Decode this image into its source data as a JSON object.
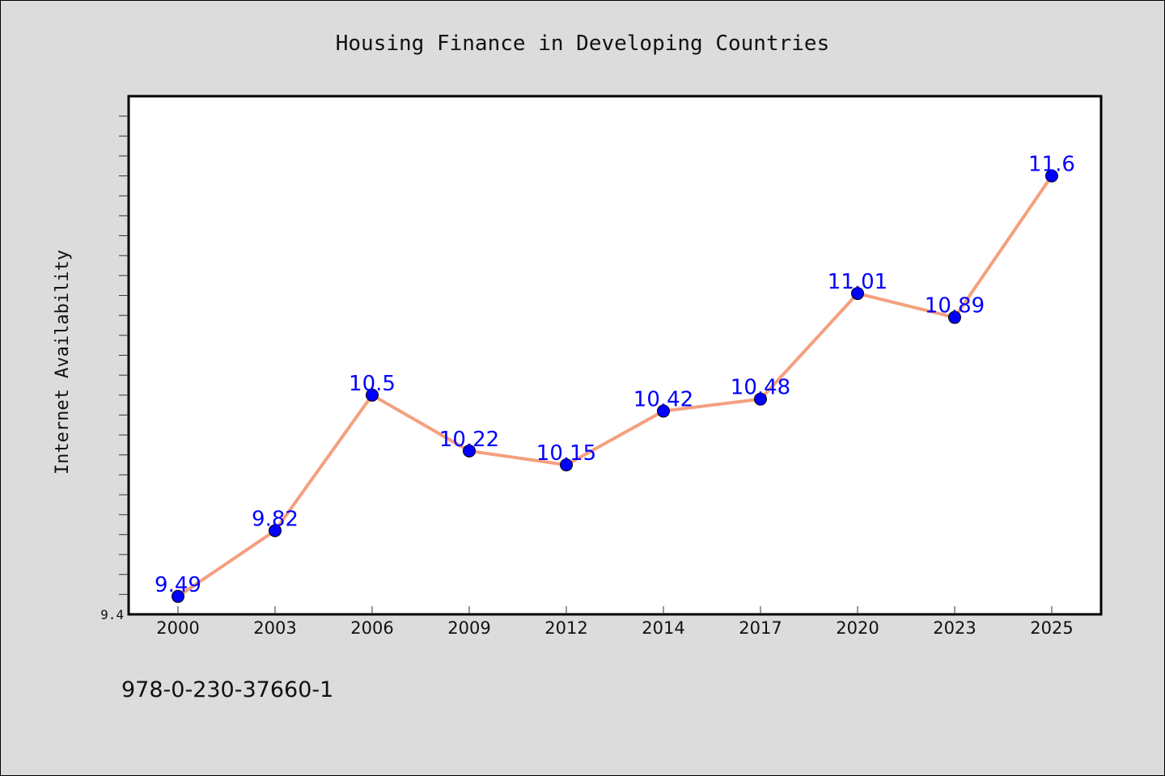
{
  "chart_data": {
    "type": "line",
    "title": "Housing Finance in Developing Countries",
    "xlabel": "",
    "ylabel": "Internet Availability",
    "categories": [
      "2000",
      "2003",
      "2006",
      "2009",
      "2012",
      "2014",
      "2017",
      "2020",
      "2023",
      "2025"
    ],
    "series": [
      {
        "values": [
          9.49,
          9.82,
          10.5,
          10.22,
          10.15,
          10.42,
          10.48,
          11.01,
          10.89,
          11.6
        ]
      }
    ],
    "ylim": [
      9.4,
      12.0
    ],
    "y_tick_labels": [
      "9.4"
    ],
    "grid": false,
    "line_color": "#f4a07e",
    "marker_color": "#0000ff",
    "label_color": "#0000ff",
    "plot_background": "#ffffff",
    "page_background": "#dcdcdc"
  },
  "footnote": "978-0-230-37660-1"
}
